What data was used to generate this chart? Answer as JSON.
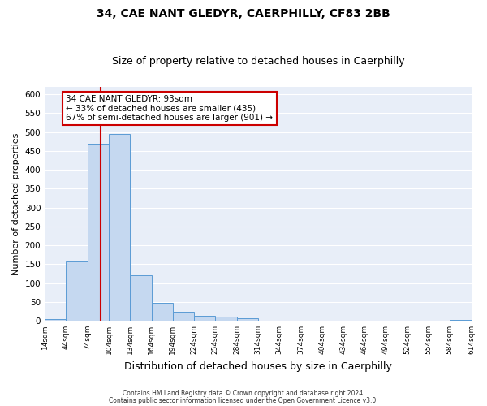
{
  "title": "34, CAE NANT GLEDYR, CAERPHILLY, CF83 2BB",
  "subtitle": "Size of property relative to detached houses in Caerphilly",
  "xlabel": "Distribution of detached houses by size in Caerphilly",
  "ylabel": "Number of detached properties",
  "bar_values": [
    5,
    158,
    470,
    495,
    120,
    47,
    24,
    13,
    10,
    7,
    0,
    0,
    0,
    0,
    0,
    0,
    0,
    0,
    0,
    3
  ],
  "bin_edges": [
    14,
    44,
    74,
    104,
    134,
    164,
    194,
    224,
    254,
    284,
    314,
    344,
    374,
    404,
    434,
    464,
    494,
    524,
    554,
    584,
    614
  ],
  "bar_color": "#c5d8f0",
  "bar_edge_color": "#5b9bd5",
  "fig_background_color": "#ffffff",
  "plot_background_color": "#e8eef8",
  "grid_color": "#ffffff",
  "vline_x": 93,
  "vline_color": "#cc0000",
  "annotation_text": "34 CAE NANT GLEDYR: 93sqm\n← 33% of detached houses are smaller (435)\n67% of semi-detached houses are larger (901) →",
  "annotation_box_color": "#cc0000",
  "ylim": [
    0,
    620
  ],
  "yticks": [
    0,
    50,
    100,
    150,
    200,
    250,
    300,
    350,
    400,
    450,
    500,
    550,
    600
  ],
  "footer_line1": "Contains HM Land Registry data © Crown copyright and database right 2024.",
  "footer_line2": "Contains public sector information licensed under the Open Government Licence v3.0."
}
